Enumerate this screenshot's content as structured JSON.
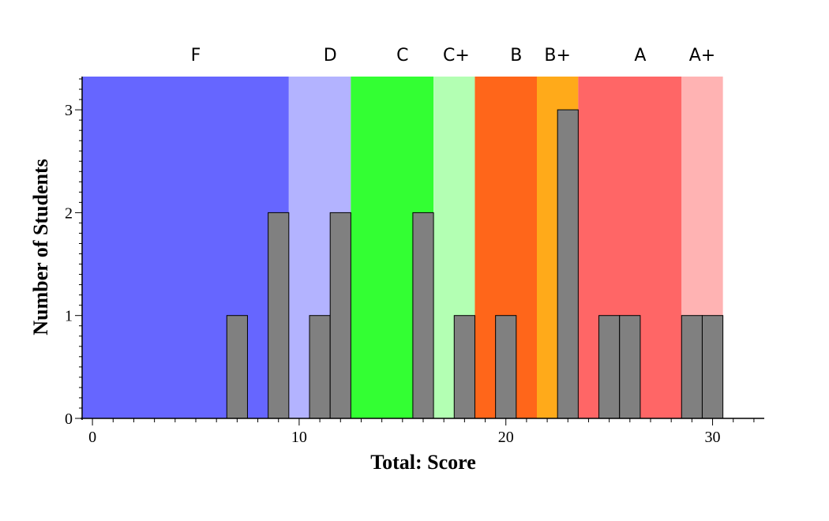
{
  "chart_data": {
    "type": "bar",
    "xlabel": "Total: Score",
    "ylabel": "Number of Students",
    "xlim": [
      -0.5,
      32.5
    ],
    "ylim": [
      0,
      3.3
    ],
    "x_ticks": [
      0,
      10,
      20,
      30
    ],
    "y_ticks": [
      0,
      1,
      2,
      3
    ],
    "grid": false,
    "bars": [
      {
        "x": 7,
        "value": 1
      },
      {
        "x": 9,
        "value": 2
      },
      {
        "x": 11,
        "value": 1
      },
      {
        "x": 12,
        "value": 2
      },
      {
        "x": 16,
        "value": 2
      },
      {
        "x": 18,
        "value": 1
      },
      {
        "x": 20,
        "value": 1
      },
      {
        "x": 23,
        "value": 3
      },
      {
        "x": 25,
        "value": 1
      },
      {
        "x": 26,
        "value": 1
      },
      {
        "x": 29,
        "value": 1
      },
      {
        "x": 30,
        "value": 1
      }
    ],
    "bar_color": "#808080",
    "grade_bands": [
      {
        "label": "F",
        "from": -0.5,
        "to": 9.5,
        "color": "#6666ff",
        "label_at": 5
      },
      {
        "label": "D",
        "from": 9.5,
        "to": 12.5,
        "color": "#b3b3ff",
        "label_at": 11.5
      },
      {
        "label": "C",
        "from": 12.5,
        "to": 16.5,
        "color": "#33ff33",
        "label_at": 15
      },
      {
        "label": "C+",
        "from": 16.5,
        "to": 18.5,
        "color": "#b3ffb3",
        "label_at": 17.6
      },
      {
        "label": "B",
        "from": 18.5,
        "to": 21.5,
        "color": "#ff661a",
        "label_at": 20.5
      },
      {
        "label": "B+",
        "from": 21.5,
        "to": 23.5,
        "color": "#ffaa1a",
        "label_at": 22.5
      },
      {
        "label": "A",
        "from": 23.5,
        "to": 28.5,
        "color": "#ff6666",
        "label_at": 26.5
      },
      {
        "label": "A+",
        "from": 28.5,
        "to": 30.5,
        "color": "#ffb3b3",
        "label_at": 29.5
      }
    ]
  }
}
